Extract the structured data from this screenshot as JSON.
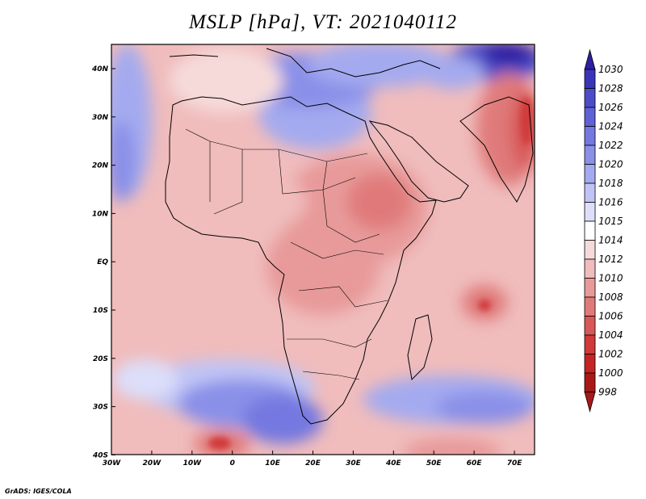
{
  "title": "MSLP [hPa], VT: 2021040112",
  "credit": "GrADS: IGES/COLA",
  "lon_labels": [
    "30W",
    "20W",
    "10W",
    "0",
    "10E",
    "20E",
    "30E",
    "40E",
    "50E",
    "60E",
    "70E"
  ],
  "lat_labels": [
    "40N",
    "30N",
    "20N",
    "10N",
    "EQ",
    "10S",
    "20S",
    "30S",
    "40S"
  ],
  "colorbar": {
    "labels": [
      "1030",
      "1028",
      "1026",
      "1024",
      "1022",
      "1020",
      "1018",
      "1016",
      "1015",
      "1014",
      "1012",
      "1010",
      "1008",
      "1006",
      "1004",
      "1002",
      "1000",
      "998"
    ],
    "colors": [
      "#2d1fa0",
      "#3a35b8",
      "#4c4cc9",
      "#5e62d6",
      "#7478e0",
      "#8a90e8",
      "#a4aaef",
      "#c0c4f5",
      "#dcdefa",
      "#ffffff",
      "#f6dada",
      "#f0bcbc",
      "#e89a9a",
      "#e07a7a",
      "#d85858",
      "#d03a3a",
      "#c42424",
      "#a81818"
    ]
  },
  "colors": {
    "ocean_base": "#f0bcbc",
    "coast": "#000000"
  }
}
